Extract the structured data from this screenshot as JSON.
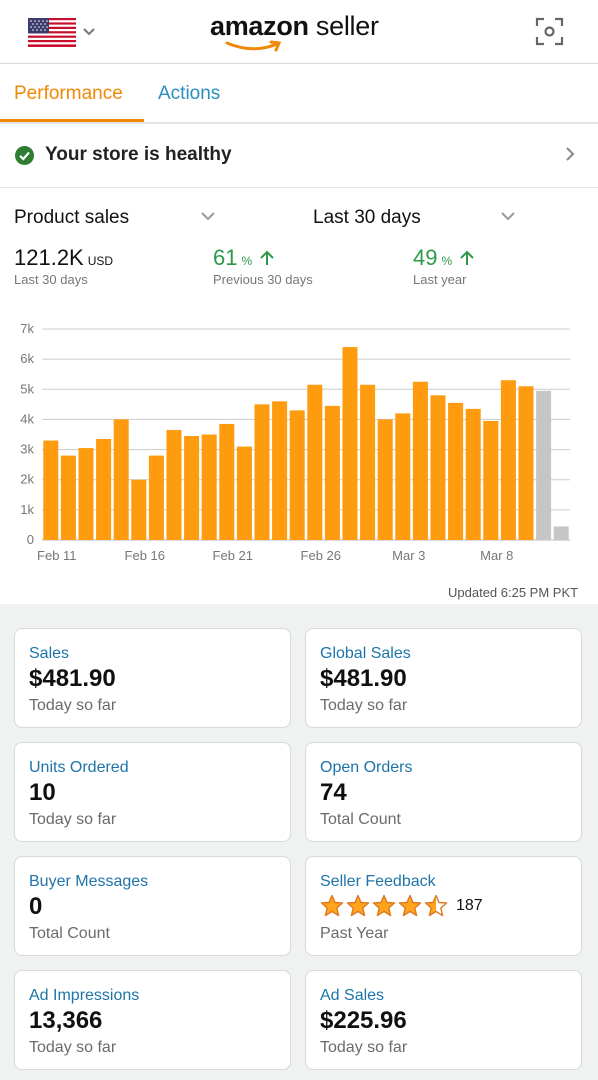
{
  "header": {
    "logo_bold": "amazon",
    "logo_light": " seller",
    "flag_icon": "us-flag-icon",
    "scan_icon": "scan-icon"
  },
  "tabs": [
    {
      "label": "Performance",
      "active": true
    },
    {
      "label": "Actions",
      "active": false
    }
  ],
  "health": {
    "text": "Your store is healthy"
  },
  "selectors": {
    "metric": "Product sales",
    "range": "Last 30 days"
  },
  "stats": {
    "total": {
      "value": "121.2K",
      "unit": "USD",
      "label": "Last 30 days"
    },
    "prev": {
      "value": "61",
      "unit": "%",
      "label": "Previous 30 days"
    },
    "year": {
      "value": "49",
      "unit": "%",
      "label": "Last year"
    }
  },
  "updated": "Updated 6:25 PM PKT",
  "colors": {
    "accent": "#f08804",
    "bar": "#fe9b0e",
    "bar_current": "#c6c6c6",
    "link": "#1e74a9",
    "green": "#2e9a48"
  },
  "chart_data": {
    "type": "bar",
    "x_labels": [
      "Feb 11",
      "Feb 16",
      "Feb 21",
      "Feb 26",
      "Mar 3",
      "Mar 8"
    ],
    "y_ticks": [
      "0",
      "1k",
      "2k",
      "3k",
      "4k",
      "5k",
      "6k",
      "7k"
    ],
    "ylim": [
      0,
      7000
    ],
    "grid": true,
    "values": [
      3300,
      2800,
      3050,
      3350,
      4000,
      2000,
      2800,
      3650,
      3450,
      3500,
      3850,
      3100,
      4500,
      4600,
      4300,
      5150,
      4450,
      6400,
      5150,
      4000,
      4200,
      5250,
      4800,
      4550,
      4350,
      3950,
      5300,
      5100,
      4950,
      450
    ],
    "highlight_last": 2
  },
  "cards": [
    {
      "title": "Sales",
      "value": "$481.90",
      "sub": "Today so far"
    },
    {
      "title": "Global Sales",
      "value": "$481.90",
      "sub": "Today so far"
    },
    {
      "title": "Units Ordered",
      "value": "10",
      "sub": "Today so far"
    },
    {
      "title": "Open Orders",
      "value": "74",
      "sub": "Total Count"
    },
    {
      "title": "Buyer Messages",
      "value": "0",
      "sub": "Total Count"
    },
    {
      "title": "Seller Feedback",
      "rating": 4.5,
      "count": "187",
      "sub": "Past Year"
    },
    {
      "title": "Ad Impressions",
      "value": "13,366",
      "sub": "Today so far"
    },
    {
      "title": "Ad Sales",
      "value": "$225.96",
      "sub": "Today so far"
    }
  ]
}
